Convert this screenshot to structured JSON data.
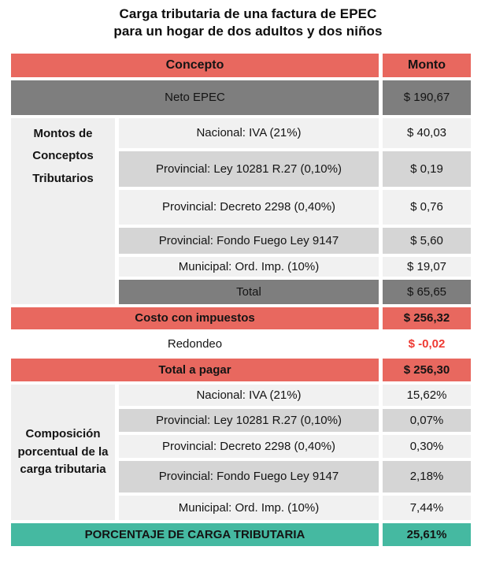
{
  "title": {
    "line1": "Carga tributaria de una factura de EPEC",
    "line2": "para un hogar de dos adultos y dos niños"
  },
  "colors": {
    "coral_header": "#E8685F",
    "dark_gray_row": "#7E7E7E",
    "light_row": "#F1F1F1",
    "alt_row": "#D5D5D5",
    "label_cell_bg": "#EFEFEF",
    "teal_row": "#45B9A1",
    "negative_red": "#EE3A33"
  },
  "table": {
    "header": {
      "concept": "Concepto",
      "amount": "Monto"
    },
    "neto_row": {
      "concept": "Neto EPEC",
      "amount": "$ 190,67"
    },
    "montos_section": {
      "label": "Montos de Conceptos Tributarios",
      "rows": [
        {
          "concept": "Nacional: IVA (21%)",
          "amount": "$ 40,03"
        },
        {
          "concept": "Provincial: Ley 10281 R.27 (0,10%)",
          "amount": "$ 0,19"
        },
        {
          "concept": "Provincial: Decreto 2298 (0,40%)",
          "amount": "$ 0,76"
        },
        {
          "concept": "Provincial: Fondo Fuego Ley 9147",
          "amount": "$ 5,60"
        },
        {
          "concept": "Municipal: Ord. Imp. (10%)",
          "amount": "$ 19,07"
        }
      ],
      "total_row": {
        "concept": "Total",
        "amount": "$ 65,65"
      }
    },
    "costo_row": {
      "concept": "Costo con impuestos",
      "amount": "$ 256,32"
    },
    "redondeo_row": {
      "concept": "Redondeo",
      "amount": "$ -0,02"
    },
    "total_pagar_row": {
      "concept": "Total a pagar",
      "amount": "$ 256,30"
    },
    "composicion_section": {
      "label": "Composición porcentual de la carga tributaria",
      "rows": [
        {
          "concept": "Nacional: IVA (21%)",
          "amount": "15,62%"
        },
        {
          "concept": "Provincial: Ley 10281 R.27 (0,10%)",
          "amount": "0,07%"
        },
        {
          "concept": "Provincial: Decreto 2298 (0,40%)",
          "amount": "0,30%"
        },
        {
          "concept": "Provincial: Fondo Fuego Ley 9147",
          "amount": "2,18%"
        },
        {
          "concept": "Municipal: Ord. Imp. (10%)",
          "amount": "7,44%"
        }
      ]
    },
    "porcentaje_row": {
      "concept": "PORCENTAJE DE CARGA TRIBUTARIA",
      "amount": "25,61%"
    }
  },
  "chart_data": {
    "type": "table",
    "title": "Carga tributaria de una factura de EPEC para un hogar de dos adultos y dos niños",
    "columns": [
      "Concepto",
      "Monto"
    ],
    "rows": [
      {
        "group": "",
        "concept": "Neto EPEC",
        "display": "$ 190,67",
        "value": 190.67
      },
      {
        "group": "Montos de Conceptos Tributarios",
        "concept": "Nacional: IVA (21%)",
        "display": "$ 40,03",
        "value": 40.03
      },
      {
        "group": "Montos de Conceptos Tributarios",
        "concept": "Provincial: Ley 10281 R.27 (0,10%)",
        "display": "$ 0,19",
        "value": 0.19
      },
      {
        "group": "Montos de Conceptos Tributarios",
        "concept": "Provincial: Decreto 2298 (0,40%)",
        "display": "$ 0,76",
        "value": 0.76
      },
      {
        "group": "Montos de Conceptos Tributarios",
        "concept": "Provincial: Fondo Fuego Ley 9147",
        "display": "$ 5,60",
        "value": 5.6
      },
      {
        "group": "Montos de Conceptos Tributarios",
        "concept": "Municipal: Ord. Imp. (10%)",
        "display": "$ 19,07",
        "value": 19.07
      },
      {
        "group": "Montos de Conceptos Tributarios",
        "concept": "Total",
        "display": "$ 65,65",
        "value": 65.65
      },
      {
        "group": "",
        "concept": "Costo con impuestos",
        "display": "$ 256,32",
        "value": 256.32
      },
      {
        "group": "",
        "concept": "Redondeo",
        "display": "$ -0,02",
        "value": -0.02
      },
      {
        "group": "",
        "concept": "Total a pagar",
        "display": "$ 256,30",
        "value": 256.3
      },
      {
        "group": "Composición porcentual de la carga tributaria",
        "concept": "Nacional: IVA (21%)",
        "display": "15,62%",
        "value": 15.62
      },
      {
        "group": "Composición porcentual de la carga tributaria",
        "concept": "Provincial: Ley 10281 R.27 (0,10%)",
        "display": "0,07%",
        "value": 0.07
      },
      {
        "group": "Composición porcentual de la carga tributaria",
        "concept": "Provincial: Decreto 2298 (0,40%)",
        "display": "0,30%",
        "value": 0.3
      },
      {
        "group": "Composición porcentual de la carga tributaria",
        "concept": "Provincial: Fondo Fuego Ley 9147",
        "display": "2,18%",
        "value": 2.18
      },
      {
        "group": "Composición porcentual de la carga tributaria",
        "concept": "Municipal: Ord. Imp. (10%)",
        "display": "7,44%",
        "value": 7.44
      },
      {
        "group": "",
        "concept": "PORCENTAJE DE CARGA TRIBUTARIA",
        "display": "25,61%",
        "value": 25.61
      }
    ]
  }
}
